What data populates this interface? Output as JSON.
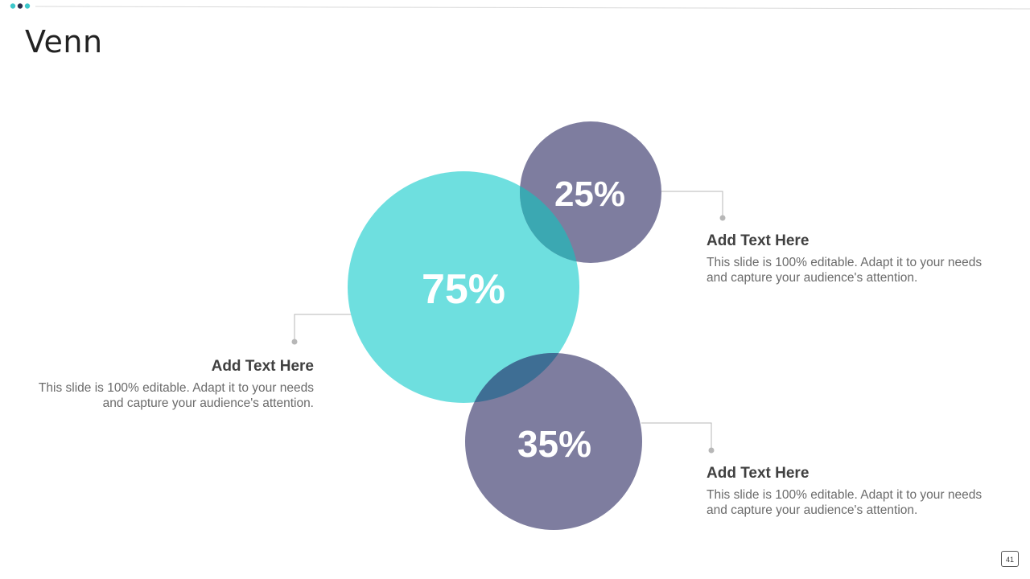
{
  "slide": {
    "title": "Venn",
    "page_number": "41"
  },
  "colors": {
    "primary_teal": "#6EDFDF",
    "secondary_purple": "#7E7D9F",
    "overlap_teal_purple": "#3BA8B2",
    "overlap_purple_teal": "#3E6E94",
    "connector": "#B7B7B7",
    "dot_dark": "#2C2C4A",
    "dot_teal": "#3DC7CB"
  },
  "venn": {
    "circles": [
      {
        "id": "main",
        "label": "75%",
        "value": 75
      },
      {
        "id": "top",
        "label": "25%",
        "value": 25
      },
      {
        "id": "bottom",
        "label": "35%",
        "value": 35
      }
    ]
  },
  "callouts": [
    {
      "heading": "Add Text Here",
      "body_line1": "This slide is 100% editable. Adapt it to your needs",
      "body_line2": "and capture your audience's attention."
    },
    {
      "heading": "Add Text Here",
      "body_line1": "This slide is 100% editable. Adapt it to your needs",
      "body_line2": "and capture your audience's attention."
    },
    {
      "heading": "Add Text Here",
      "body_line1": "This slide is 100% editable. Adapt it to your needs",
      "body_line2": "and capture your audience's attention."
    }
  ]
}
